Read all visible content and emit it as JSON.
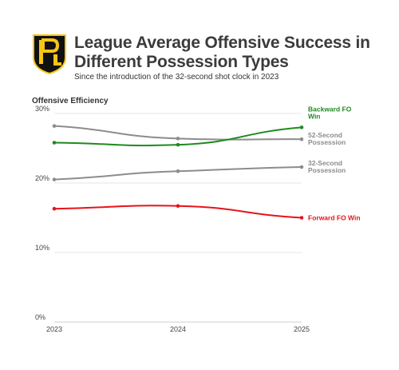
{
  "header": {
    "title": "League Average Offensive Success in Different Possession Types",
    "subtitle": "Since the introduction of the 32-second shot clock in 2023"
  },
  "logo": {
    "name": "league-logo",
    "bg_color": "#111111",
    "accent_color": "#f5c518"
  },
  "chart_data": {
    "type": "line",
    "title": "League Average Offensive Success in Different Possession Types",
    "subtitle": "Since the introduction of the 32-second shot clock in 2023",
    "ylabel": "Offensive Efficiency",
    "xlabel": "",
    "x": [
      "2023",
      "2024",
      "2025"
    ],
    "ylim": [
      0,
      30
    ],
    "yticks": [
      {
        "value": 0,
        "label": "0%"
      },
      {
        "value": 10,
        "label": "10%"
      },
      {
        "value": 20,
        "label": "20%"
      },
      {
        "value": 30,
        "label": "30%"
      }
    ],
    "grid": true,
    "legend": "direct labels at line ends",
    "series": [
      {
        "name": "52-Second Possession",
        "label_lines": [
          "52-Second",
          "Possession"
        ],
        "color": "#8c8c8c",
        "values": [
          28.2,
          26.4,
          26.3
        ]
      },
      {
        "name": "Backward FO Win",
        "label_lines": [
          "Backward FO",
          "Win"
        ],
        "color": "#1f8a1f",
        "values": [
          25.8,
          25.5,
          28.0
        ]
      },
      {
        "name": "32-Second Possession",
        "label_lines": [
          "32-Second",
          "Possession"
        ],
        "color": "#8c8c8c",
        "values": [
          20.5,
          21.7,
          22.3
        ]
      },
      {
        "name": "Forward FO Win",
        "label_lines": [
          "Forward FO Win"
        ],
        "color": "#e8131a",
        "values": [
          16.3,
          16.7,
          15.0
        ]
      }
    ]
  }
}
